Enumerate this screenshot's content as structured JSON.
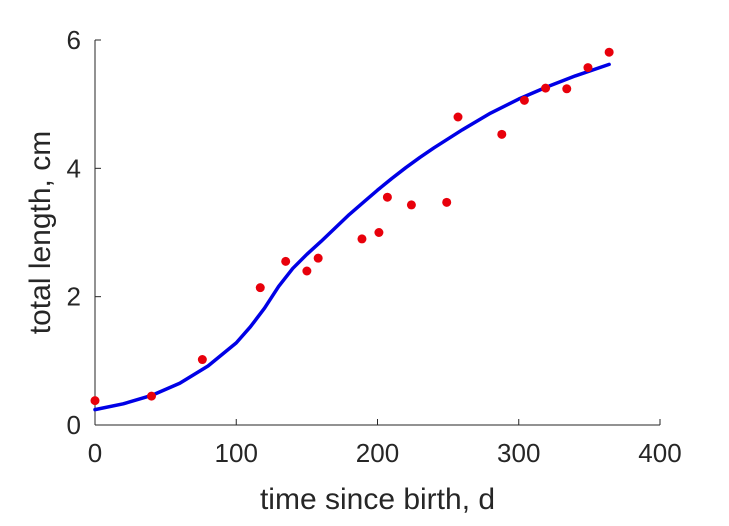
{
  "chart_data": {
    "type": "scatter",
    "title": "",
    "xlabel": "time since birth, d",
    "ylabel": "total length, cm",
    "xlim": [
      0,
      400
    ],
    "ylim": [
      0,
      6
    ],
    "xticks": [
      0,
      100,
      200,
      300,
      400
    ],
    "yticks": [
      0,
      2,
      4,
      6
    ],
    "grid": false,
    "legend": "none",
    "series": [
      {
        "kind": "points",
        "color": "#e8000b",
        "x": [
          0,
          40,
          76,
          117,
          135,
          150,
          158,
          189,
          201,
          207,
          224,
          249,
          257,
          288,
          304,
          319,
          334,
          349,
          364
        ],
        "y": [
          0.38,
          0.45,
          1.02,
          2.14,
          2.55,
          2.4,
          2.6,
          2.9,
          3.0,
          3.55,
          3.43,
          3.47,
          4.8,
          4.53,
          5.06,
          5.25,
          5.24,
          5.57,
          5.81
        ]
      },
      {
        "kind": "line",
        "color": "#0000e6",
        "x": [
          0,
          20,
          40,
          60,
          80,
          100,
          110,
          120,
          130,
          140,
          150,
          160,
          170,
          180,
          190,
          200,
          210,
          220,
          230,
          240,
          260,
          280,
          300,
          320,
          340,
          364
        ],
        "y": [
          0.24,
          0.33,
          0.46,
          0.65,
          0.92,
          1.28,
          1.53,
          1.82,
          2.16,
          2.44,
          2.66,
          2.86,
          3.07,
          3.28,
          3.47,
          3.66,
          3.84,
          4.01,
          4.17,
          4.32,
          4.6,
          4.86,
          5.08,
          5.27,
          5.44,
          5.62
        ]
      }
    ]
  }
}
